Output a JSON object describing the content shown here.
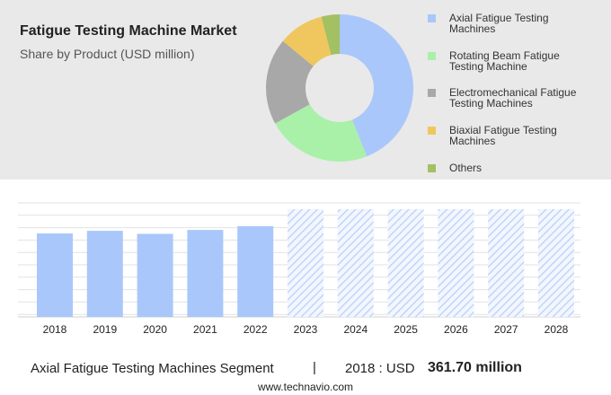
{
  "chart_data": [
    {
      "type": "donut",
      "title": "Fatigue Testing Machine Market",
      "subtitle": "Share by Product (USD million)",
      "categories": [
        "Axial Fatigue Testing Machines",
        "Rotating Beam Fatigue Testing Machine",
        "Electromechanical Fatigue Testing Machines",
        "Biaxial Fatigue Testing Machines",
        "Others"
      ],
      "values": [
        44,
        23,
        19,
        10,
        4
      ],
      "colors": [
        "#a9c7fb",
        "#a9f0a9",
        "#a8a8a8",
        "#f0c75e",
        "#a3c063"
      ]
    },
    {
      "type": "bar",
      "categories": [
        "2018",
        "2019",
        "2020",
        "2021",
        "2022",
        "2023",
        "2024",
        "2025",
        "2026",
        "2027",
        "2028"
      ],
      "values": [
        361.7,
        373,
        360,
        377,
        393,
        null,
        null,
        null,
        null,
        null,
        null
      ],
      "color": "#a9c7fb",
      "ylim": [
        0,
        500
      ]
    }
  ],
  "footer": {
    "segment": "Axial Fatigue Testing Machines Segment",
    "year_label": "2018 : USD",
    "value_label": "361.70 million",
    "source": "www.technavio.com"
  }
}
